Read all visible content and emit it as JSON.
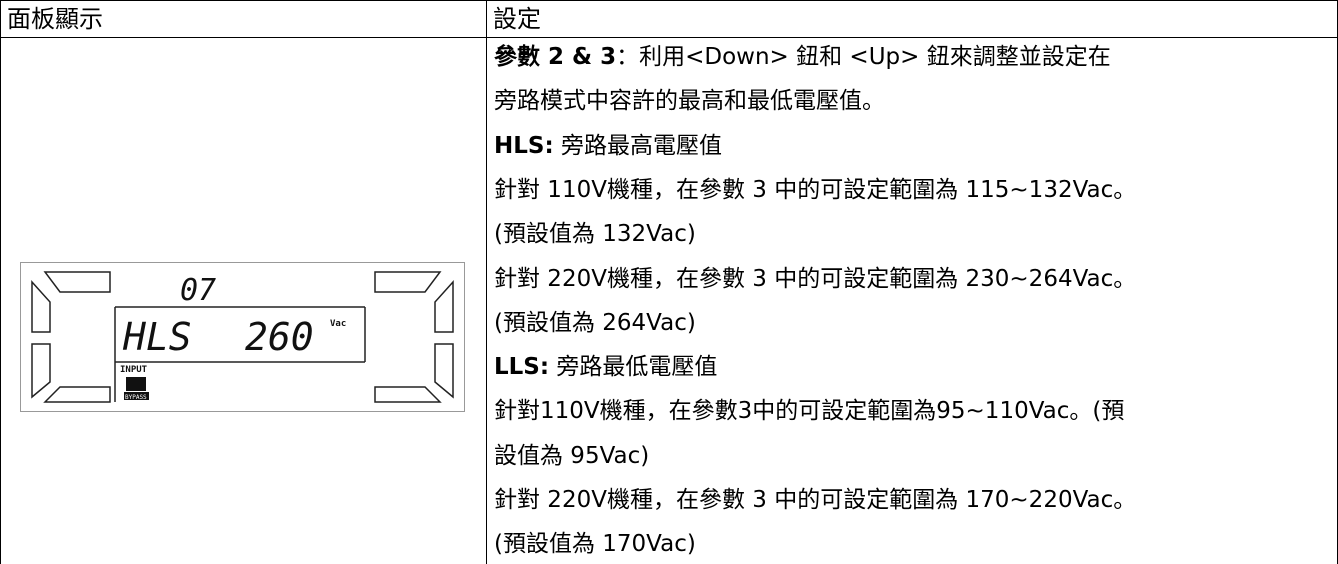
{
  "table": {
    "headers": [
      "面板顯示",
      "設定"
    ],
    "lines": [
      [
        {
          "t": "參數 2 & 3",
          "b": true
        },
        {
          "t": "：利用<Down> 鈕和 <Up> 鈕來調整並設定在"
        }
      ],
      [
        {
          "t": "旁路模式中容許的最高和最低電壓值。"
        }
      ],
      [
        {
          "t": "HLS:",
          "b": true
        },
        {
          "t": " 旁路最高電壓值"
        }
      ],
      [
        {
          "t": "針對 110V機種，在參數 3 中的可設定範圍為 115~132Vac。"
        }
      ],
      [
        {
          "t": "(預設值為 132Vac)"
        }
      ],
      [
        {
          "t": "針對 220V機種，在參數 3 中的可設定範圍為 230~264Vac。"
        }
      ],
      [
        {
          "t": "(預設值為 264Vac)"
        }
      ],
      [
        {
          "t": "LLS:",
          "b": true
        },
        {
          "t": " 旁路最低電壓值"
        }
      ],
      [
        {
          "t": "針對110V機種，在參數3中的可設定範圍為95~110Vac。(預"
        }
      ],
      [
        {
          "t": "設值為 95Vac)"
        }
      ],
      [
        {
          "t": "針對 220V機種，在參數 3 中的可設定範圍為 170~220Vac。"
        }
      ],
      [
        {
          "t": "(預設值為 170Vac)"
        }
      ]
    ]
  },
  "lcd": {
    "param": "07",
    "mode": "HLS",
    "value": "260",
    "unit": "Vac",
    "input": "INPUT",
    "bypass": "BYPASS"
  }
}
